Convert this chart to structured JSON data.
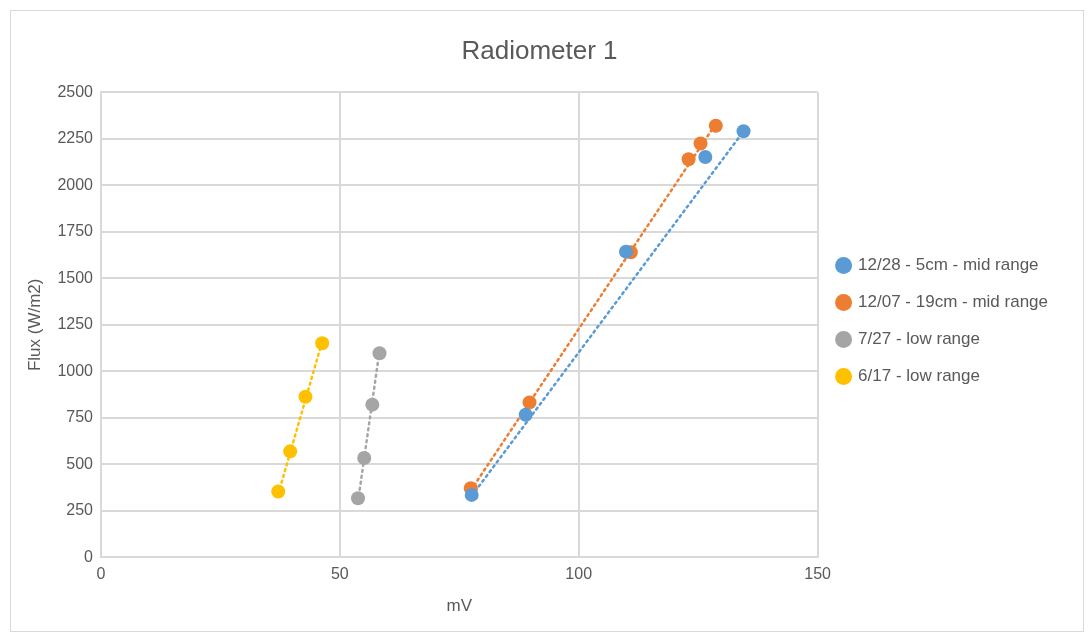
{
  "chart_data": {
    "type": "scatter",
    "title": "Radiometer 1",
    "xlabel": "mV",
    "ylabel": "Flux (W/m2)",
    "xlim": [
      0,
      150
    ],
    "xticks": [
      0,
      50,
      100,
      150
    ],
    "ylim": [
      0,
      2500
    ],
    "yticks": [
      0,
      250,
      500,
      750,
      1000,
      1250,
      1500,
      1750,
      2000,
      2250,
      2500
    ],
    "grid": true,
    "legend": "right",
    "marker": "circle",
    "series": [
      {
        "name": "12/28 - 5cm - mid range",
        "color": "#5b9bd5",
        "x": [
          77.6,
          88.9,
          109.9,
          126.5,
          134.5
        ],
        "values": [
          336,
          767,
          1643,
          2152,
          2290
        ]
      },
      {
        "name": "12/07 - 19cm - mid range",
        "color": "#ed7d31",
        "x": [
          77.4,
          89.7,
          110.9,
          123.0,
          125.5,
          128.7
        ],
        "values": [
          372,
          833,
          1640,
          2140,
          2224,
          2320
        ]
      },
      {
        "name": "7/27 - low range",
        "color": "#a5a5a5",
        "x": [
          53.8,
          55.1,
          56.8,
          58.3
        ],
        "values": [
          318,
          534,
          821,
          1097
        ]
      },
      {
        "name": "6/17 - low range",
        "color": "#ffc000",
        "x": [
          37.1,
          39.6,
          42.8,
          46.3
        ],
        "values": [
          354,
          570,
          863,
          1151
        ]
      },
      {
        "type": "line",
        "line_style": "dotted",
        "marker": "none",
        "color": "#5b9bd5",
        "x": [
          77.6,
          134.5
        ],
        "values": [
          330,
          2290
        ]
      },
      {
        "type": "line",
        "line_style": "dotted",
        "marker": "none",
        "color": "#ed7d31",
        "x": [
          77.4,
          128.7
        ],
        "values": [
          360,
          2330
        ]
      },
      {
        "type": "line",
        "line_style": "dotted",
        "marker": "none",
        "color": "#a5a5a5",
        "x": [
          53.8,
          58.3
        ],
        "values": [
          300,
          1110
        ]
      },
      {
        "type": "line",
        "line_style": "dotted",
        "marker": "none",
        "color": "#ffc000",
        "x": [
          37.1,
          46.3
        ],
        "values": [
          340,
          1160
        ]
      }
    ]
  }
}
